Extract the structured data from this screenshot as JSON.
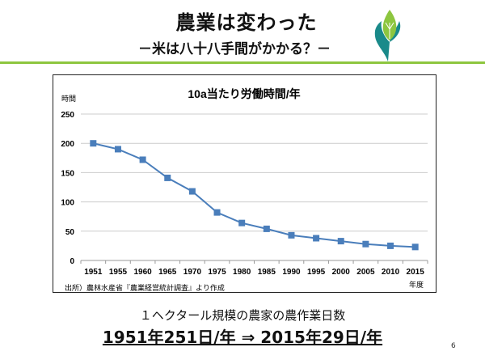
{
  "title": "農業は変わった",
  "subtitle": "－米は八十八手間がかかる？－",
  "chart_data": {
    "type": "line",
    "title": "10a当たり労働時間/年",
    "ylabel": "時間",
    "xlabel": "年度",
    "ylim": [
      0,
      250
    ],
    "yticks": [
      0,
      50,
      100,
      150,
      200,
      250
    ],
    "categories": [
      "1951",
      "1955",
      "1960",
      "1965",
      "1970",
      "1975",
      "1980",
      "1985",
      "1990",
      "1995",
      "2000",
      "2005",
      "2010",
      "2015"
    ],
    "values": [
      200,
      190,
      172,
      141,
      118,
      82,
      64,
      54,
      43,
      38,
      33,
      28,
      25,
      23
    ],
    "grid": true,
    "color": "#4a7ebb",
    "source": "出所）農林水産省『農業経営統計調査』より作成"
  },
  "caption": "１ヘクタール規模の農家の農作業日数",
  "headline": "1951年251日/年 ⇒ 2015年29日/年",
  "page_number": "6"
}
